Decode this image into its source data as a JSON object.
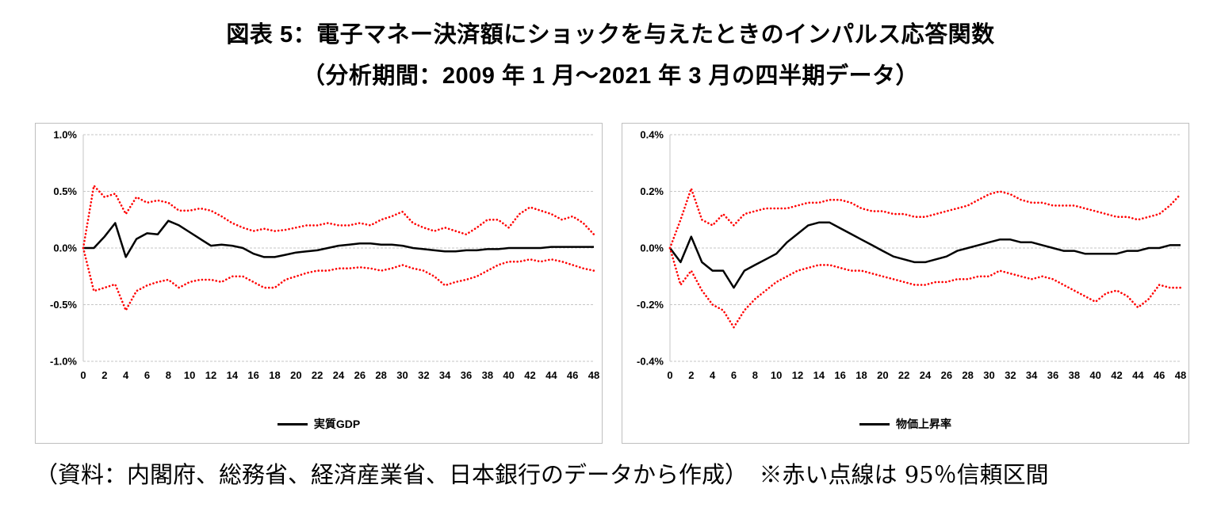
{
  "title": "図表 5：電子マネー決済額にショックを与えたときのインパルス応答関数",
  "subtitle": "（分析期間：2009 年 1 月～2021 年 3 月の四半期データ）",
  "footer": "（資料：内閣府、総務省、経済産業省、日本銀行のデータから作成）　※赤い点線は 95％信頼区間",
  "colors": {
    "line": "#000000",
    "band": "#FF0000",
    "grid": "#C6C6C6",
    "panel_border": "#BFBFBF"
  },
  "chart_data": [
    {
      "type": "line",
      "legend_label": "実質GDP",
      "x": [
        0,
        1,
        2,
        3,
        4,
        5,
        6,
        7,
        8,
        9,
        10,
        11,
        12,
        13,
        14,
        15,
        16,
        17,
        18,
        19,
        20,
        21,
        22,
        23,
        24,
        25,
        26,
        27,
        28,
        29,
        30,
        31,
        32,
        33,
        34,
        35,
        36,
        37,
        38,
        39,
        40,
        41,
        42,
        43,
        44,
        45,
        46,
        47,
        48
      ],
      "xticks": [
        0,
        2,
        4,
        6,
        8,
        10,
        12,
        14,
        16,
        18,
        20,
        22,
        24,
        26,
        28,
        30,
        32,
        34,
        36,
        38,
        40,
        42,
        44,
        46,
        48
      ],
      "ylim": [
        -1.0,
        1.0
      ],
      "yticks": [
        1.0,
        0.5,
        0.0,
        -0.5,
        -1.0
      ],
      "ytick_labels": [
        "1.0%",
        "0.5%",
        "0.0%",
        "-0.5%",
        "-1.0%"
      ],
      "grid": true,
      "legend_position": "bottom",
      "series": [
        {
          "name": "実質GDP",
          "color": "#000000",
          "style": "solid",
          "values": [
            0.0,
            0.0,
            0.1,
            0.22,
            -0.08,
            0.08,
            0.13,
            0.12,
            0.24,
            0.2,
            0.14,
            0.08,
            0.02,
            0.03,
            0.02,
            0.0,
            -0.05,
            -0.08,
            -0.08,
            -0.06,
            -0.04,
            -0.03,
            -0.02,
            0.0,
            0.02,
            0.03,
            0.04,
            0.04,
            0.03,
            0.03,
            0.02,
            0.0,
            -0.01,
            -0.02,
            -0.03,
            -0.03,
            -0.02,
            -0.02,
            -0.01,
            -0.01,
            0.0,
            0.0,
            0.0,
            0.0,
            0.01,
            0.01,
            0.01,
            0.01,
            0.01
          ]
        },
        {
          "name": "95%信頼区間上限",
          "color": "#FF0000",
          "style": "dotted",
          "values": [
            0.0,
            0.55,
            0.45,
            0.48,
            0.3,
            0.45,
            0.4,
            0.42,
            0.4,
            0.33,
            0.33,
            0.35,
            0.33,
            0.28,
            0.22,
            0.18,
            0.15,
            0.17,
            0.15,
            0.16,
            0.18,
            0.2,
            0.2,
            0.22,
            0.2,
            0.2,
            0.22,
            0.2,
            0.25,
            0.28,
            0.32,
            0.22,
            0.18,
            0.15,
            0.18,
            0.15,
            0.12,
            0.18,
            0.25,
            0.25,
            0.18,
            0.3,
            0.36,
            0.33,
            0.3,
            0.25,
            0.28,
            0.22,
            0.12
          ]
        },
        {
          "name": "95%信頼区間下限",
          "color": "#FF0000",
          "style": "dotted",
          "values": [
            0.0,
            -0.38,
            -0.35,
            -0.32,
            -0.55,
            -0.38,
            -0.33,
            -0.3,
            -0.28,
            -0.35,
            -0.3,
            -0.28,
            -0.28,
            -0.3,
            -0.25,
            -0.25,
            -0.3,
            -0.35,
            -0.35,
            -0.28,
            -0.25,
            -0.22,
            -0.2,
            -0.2,
            -0.18,
            -0.18,
            -0.17,
            -0.18,
            -0.2,
            -0.18,
            -0.15,
            -0.18,
            -0.2,
            -0.25,
            -0.33,
            -0.3,
            -0.28,
            -0.25,
            -0.2,
            -0.15,
            -0.12,
            -0.12,
            -0.1,
            -0.12,
            -0.1,
            -0.12,
            -0.15,
            -0.18,
            -0.2
          ]
        }
      ]
    },
    {
      "type": "line",
      "legend_label": "物価上昇率",
      "x": [
        0,
        1,
        2,
        3,
        4,
        5,
        6,
        7,
        8,
        9,
        10,
        11,
        12,
        13,
        14,
        15,
        16,
        17,
        18,
        19,
        20,
        21,
        22,
        23,
        24,
        25,
        26,
        27,
        28,
        29,
        30,
        31,
        32,
        33,
        34,
        35,
        36,
        37,
        38,
        39,
        40,
        41,
        42,
        43,
        44,
        45,
        46,
        47,
        48
      ],
      "xticks": [
        0,
        2,
        4,
        6,
        8,
        10,
        12,
        14,
        16,
        18,
        20,
        22,
        24,
        26,
        28,
        30,
        32,
        34,
        36,
        38,
        40,
        42,
        44,
        46,
        48
      ],
      "ylim": [
        -0.4,
        0.4
      ],
      "yticks": [
        0.4,
        0.2,
        0.0,
        -0.2,
        -0.4
      ],
      "ytick_labels": [
        "0.4%",
        "0.2%",
        "0.0%",
        "-0.2%",
        "-0.4%"
      ],
      "grid": true,
      "legend_position": "bottom",
      "series": [
        {
          "name": "物価上昇率",
          "color": "#000000",
          "style": "solid",
          "values": [
            0.0,
            -0.05,
            0.04,
            -0.05,
            -0.08,
            -0.08,
            -0.14,
            -0.08,
            -0.06,
            -0.04,
            -0.02,
            0.02,
            0.05,
            0.08,
            0.09,
            0.09,
            0.07,
            0.05,
            0.03,
            0.01,
            -0.01,
            -0.03,
            -0.04,
            -0.05,
            -0.05,
            -0.04,
            -0.03,
            -0.01,
            0.0,
            0.01,
            0.02,
            0.03,
            0.03,
            0.02,
            0.02,
            0.01,
            0.0,
            -0.01,
            -0.01,
            -0.02,
            -0.02,
            -0.02,
            -0.02,
            -0.01,
            -0.01,
            0.0,
            0.0,
            0.01,
            0.01
          ]
        },
        {
          "name": "95%信頼区間上限",
          "color": "#FF0000",
          "style": "dotted",
          "values": [
            0.0,
            0.1,
            0.21,
            0.1,
            0.08,
            0.12,
            0.08,
            0.12,
            0.13,
            0.14,
            0.14,
            0.14,
            0.15,
            0.16,
            0.16,
            0.17,
            0.17,
            0.16,
            0.14,
            0.13,
            0.13,
            0.12,
            0.12,
            0.11,
            0.11,
            0.12,
            0.13,
            0.14,
            0.15,
            0.17,
            0.19,
            0.2,
            0.19,
            0.17,
            0.16,
            0.16,
            0.15,
            0.15,
            0.15,
            0.14,
            0.13,
            0.12,
            0.11,
            0.11,
            0.1,
            0.11,
            0.12,
            0.15,
            0.19
          ]
        },
        {
          "name": "95%信頼区間下限",
          "color": "#FF0000",
          "style": "dotted",
          "values": [
            0.0,
            -0.13,
            -0.08,
            -0.15,
            -0.2,
            -0.22,
            -0.28,
            -0.22,
            -0.18,
            -0.15,
            -0.12,
            -0.1,
            -0.08,
            -0.07,
            -0.06,
            -0.06,
            -0.07,
            -0.08,
            -0.08,
            -0.09,
            -0.1,
            -0.11,
            -0.12,
            -0.13,
            -0.13,
            -0.12,
            -0.12,
            -0.11,
            -0.11,
            -0.1,
            -0.1,
            -0.08,
            -0.09,
            -0.1,
            -0.11,
            -0.1,
            -0.11,
            -0.13,
            -0.15,
            -0.17,
            -0.19,
            -0.16,
            -0.15,
            -0.17,
            -0.21,
            -0.18,
            -0.13,
            -0.14,
            -0.14
          ]
        }
      ]
    }
  ]
}
